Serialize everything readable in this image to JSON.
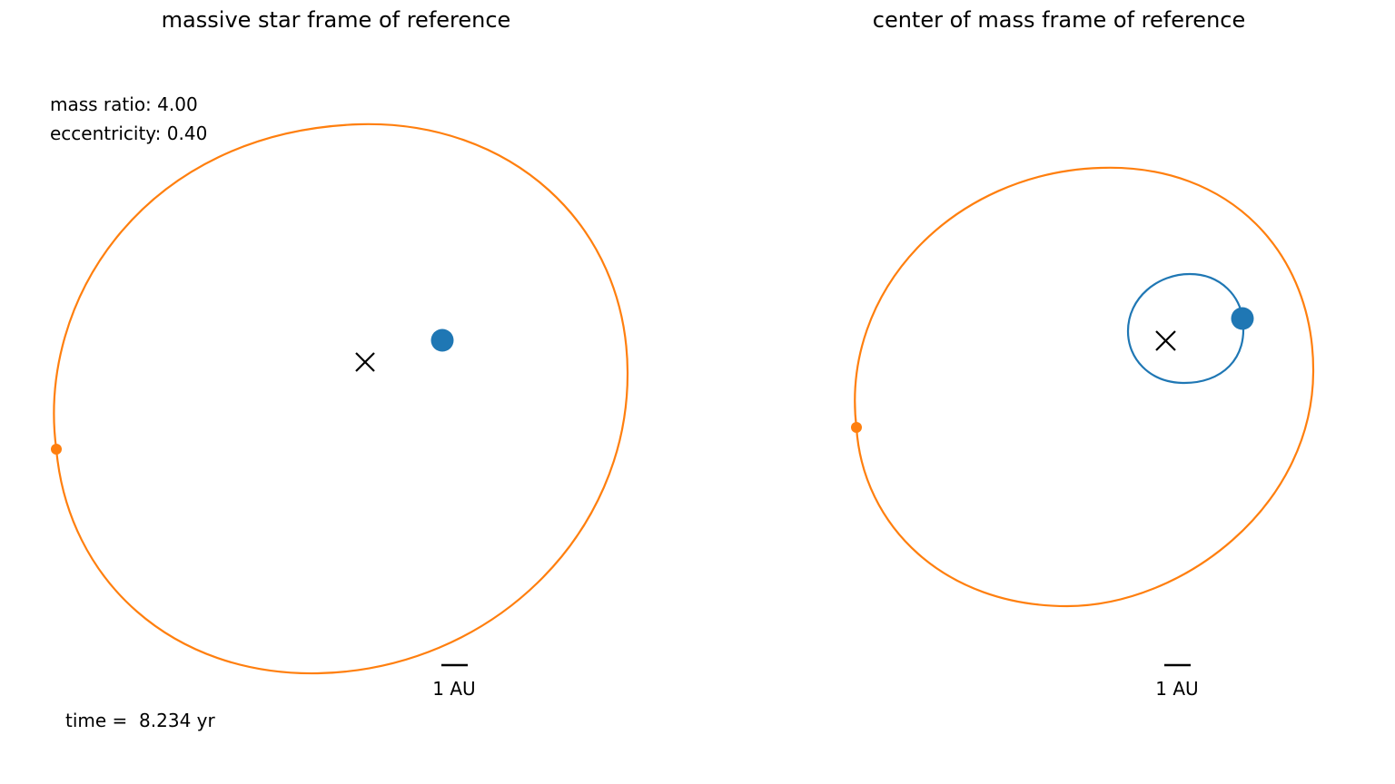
{
  "panels": [
    {
      "title": "massive star frame of reference",
      "scale_label": "1 AU"
    },
    {
      "title": "center of mass frame of reference",
      "scale_label": "1 AU"
    }
  ],
  "info": {
    "mass_label": "mass ratio:",
    "mass_ratio": "4.00",
    "ecc_label": "eccentricity:",
    "eccentricity": "0.40",
    "time_label": "time = ",
    "time_value": "8.234",
    "time_unit": "yr"
  },
  "colors": {
    "massive_star": "#1f77b4",
    "light_star": "#ff7f0e",
    "center_marker": "#000000"
  },
  "chart_data": [
    {
      "type": "scatter",
      "frame": "massive star frame of reference",
      "series": [
        {
          "body": "massive star",
          "color": "#1f77b4",
          "orbit": false,
          "marker": "large-dot"
        },
        {
          "body": "light star",
          "color": "#ff7f0e",
          "orbit": true,
          "marker": "small-dot"
        },
        {
          "body": "reference point",
          "color": "#000000",
          "marker": "x"
        }
      ],
      "axes": "hidden",
      "grid": false
    },
    {
      "type": "scatter",
      "frame": "center of mass frame of reference",
      "series": [
        {
          "body": "massive star",
          "color": "#1f77b4",
          "orbit": true,
          "marker": "large-dot"
        },
        {
          "body": "light star",
          "color": "#ff7f0e",
          "orbit": true,
          "marker": "small-dot"
        },
        {
          "body": "center of mass",
          "color": "#000000",
          "marker": "x"
        }
      ],
      "axes": "hidden",
      "grid": false
    }
  ]
}
